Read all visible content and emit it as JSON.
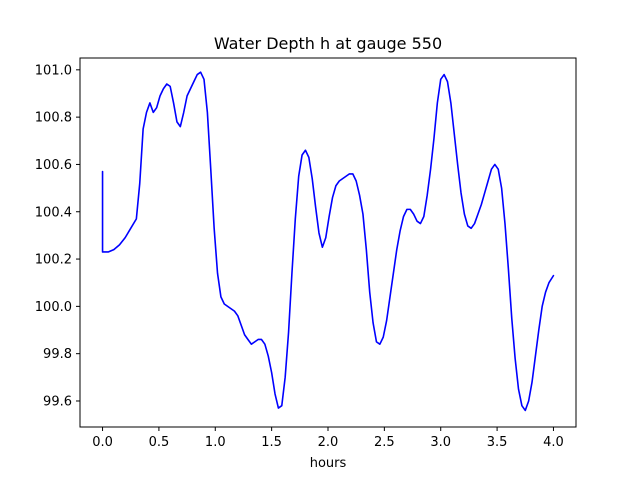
{
  "chart_data": {
    "type": "line",
    "title": "Water Depth h at gauge 550",
    "xlabel": "hours",
    "ylabel": "",
    "xlim": [
      -0.2,
      4.2
    ],
    "ylim": [
      99.49,
      101.05
    ],
    "xticks": [
      0.0,
      0.5,
      1.0,
      1.5,
      2.0,
      2.5,
      3.0,
      3.5,
      4.0
    ],
    "xtick_labels": [
      "0.0",
      "0.5",
      "1.0",
      "1.5",
      "2.0",
      "2.5",
      "3.0",
      "3.5",
      "4.0"
    ],
    "yticks": [
      99.6,
      99.8,
      100.0,
      100.2,
      100.4,
      100.6,
      100.8,
      101.0
    ],
    "ytick_labels": [
      "99.6",
      "99.8",
      "100.0",
      "100.2",
      "100.4",
      "100.6",
      "100.8",
      "101.0"
    ],
    "grid": false,
    "series": [
      {
        "color": "#0000ff",
        "x": [
          0.0,
          0.0,
          0.05,
          0.1,
          0.15,
          0.2,
          0.25,
          0.3,
          0.33,
          0.36,
          0.39,
          0.42,
          0.45,
          0.48,
          0.51,
          0.54,
          0.57,
          0.6,
          0.63,
          0.66,
          0.69,
          0.72,
          0.75,
          0.78,
          0.81,
          0.84,
          0.87,
          0.9,
          0.93,
          0.96,
          0.99,
          1.02,
          1.05,
          1.08,
          1.11,
          1.14,
          1.17,
          1.2,
          1.23,
          1.26,
          1.29,
          1.32,
          1.35,
          1.38,
          1.41,
          1.44,
          1.47,
          1.5,
          1.53,
          1.56,
          1.59,
          1.62,
          1.65,
          1.68,
          1.71,
          1.74,
          1.77,
          1.8,
          1.83,
          1.86,
          1.89,
          1.92,
          1.95,
          1.98,
          2.01,
          2.04,
          2.07,
          2.1,
          2.13,
          2.16,
          2.19,
          2.22,
          2.25,
          2.28,
          2.31,
          2.34,
          2.37,
          2.4,
          2.43,
          2.46,
          2.49,
          2.52,
          2.55,
          2.58,
          2.61,
          2.64,
          2.67,
          2.7,
          2.73,
          2.76,
          2.79,
          2.82,
          2.85,
          2.88,
          2.91,
          2.94,
          2.97,
          3.0,
          3.03,
          3.06,
          3.09,
          3.12,
          3.15,
          3.18,
          3.21,
          3.24,
          3.27,
          3.3,
          3.33,
          3.36,
          3.39,
          3.42,
          3.45,
          3.48,
          3.51,
          3.54,
          3.57,
          3.6,
          3.63,
          3.66,
          3.69,
          3.72,
          3.75,
          3.78,
          3.81,
          3.84,
          3.87,
          3.9,
          3.93,
          3.96,
          4.0
        ],
        "y": [
          100.57,
          100.23,
          100.23,
          100.24,
          100.26,
          100.29,
          100.33,
          100.37,
          100.52,
          100.75,
          100.82,
          100.86,
          100.82,
          100.84,
          100.89,
          100.92,
          100.94,
          100.93,
          100.86,
          100.78,
          100.76,
          100.82,
          100.89,
          100.92,
          100.95,
          100.98,
          100.99,
          100.96,
          100.82,
          100.58,
          100.33,
          100.14,
          100.04,
          100.01,
          100.0,
          99.99,
          99.98,
          99.96,
          99.92,
          99.88,
          99.86,
          99.84,
          99.85,
          99.86,
          99.86,
          99.84,
          99.79,
          99.72,
          99.63,
          99.57,
          99.58,
          99.7,
          99.89,
          100.14,
          100.37,
          100.55,
          100.64,
          100.66,
          100.63,
          100.54,
          100.42,
          100.31,
          100.25,
          100.29,
          100.38,
          100.46,
          100.51,
          100.53,
          100.54,
          100.55,
          100.56,
          100.56,
          100.53,
          100.47,
          100.39,
          100.24,
          100.06,
          99.93,
          99.85,
          99.84,
          99.87,
          99.94,
          100.04,
          100.14,
          100.24,
          100.32,
          100.38,
          100.41,
          100.41,
          100.39,
          100.36,
          100.35,
          100.38,
          100.47,
          100.58,
          100.71,
          100.86,
          100.96,
          100.98,
          100.95,
          100.86,
          100.73,
          100.6,
          100.48,
          100.39,
          100.34,
          100.33,
          100.35,
          100.39,
          100.43,
          100.48,
          100.53,
          100.58,
          100.6,
          100.58,
          100.5,
          100.35,
          100.16,
          99.95,
          99.78,
          99.65,
          99.58,
          99.56,
          99.6,
          99.68,
          99.79,
          99.9,
          100.0,
          100.06,
          100.1,
          100.13
        ]
      }
    ]
  }
}
